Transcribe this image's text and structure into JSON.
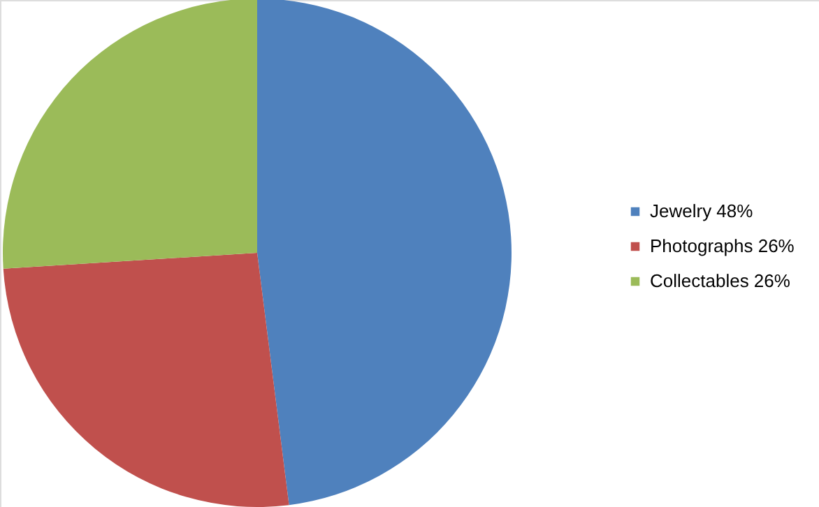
{
  "chart_data": {
    "type": "pie",
    "categories": [
      "Jewelry 48%",
      "Photographs 26%",
      "Collectables 26%"
    ],
    "values": [
      48,
      26,
      26
    ],
    "colors": [
      "#4f81bd",
      "#c0504d",
      "#9bbb59"
    ],
    "legend": "right"
  }
}
